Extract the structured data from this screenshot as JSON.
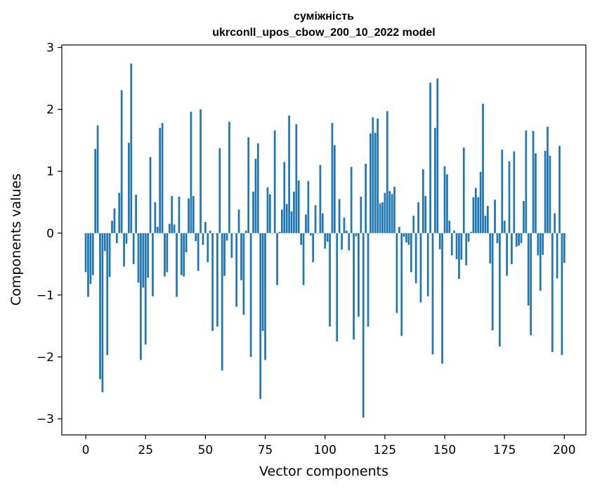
{
  "chart_data": {
    "type": "bar",
    "title_line1": "суміжність",
    "title_line2": "ukrconll_upos_cbow_200_10_2022 model",
    "xlabel": "Vector components",
    "ylabel": "Components values",
    "xlim": [
      -10,
      209
    ],
    "ylim": [
      -3.26,
      3.04
    ],
    "xticks": [
      0,
      25,
      50,
      75,
      100,
      125,
      150,
      175,
      200
    ],
    "yticks": [
      -3,
      -2,
      -1,
      0,
      1,
      2,
      3
    ],
    "grid": false,
    "bar_color": "#1f77b4",
    "values": [
      -0.63,
      -1.03,
      -0.82,
      -0.68,
      1.36,
      1.74,
      -2.36,
      -2.57,
      -0.29,
      -1.97,
      -0.71,
      0.2,
      0.4,
      -0.16,
      0.65,
      2.31,
      -0.54,
      -0.17,
      1.46,
      2.74,
      -0.5,
      0.62,
      -0.8,
      -2.05,
      -0.88,
      -1.8,
      -0.72,
      1.23,
      -1.02,
      0.5,
      0.1,
      1.7,
      1.78,
      -0.7,
      -0.63,
      0.15,
      0.6,
      0.14,
      -1.03,
      0.59,
      -0.68,
      -0.7,
      -0.31,
      0.56,
      1.96,
      0.6,
      -0.13,
      -0.61,
      2.0,
      -0.19,
      0.18,
      -0.47,
      0.04,
      -1.58,
      0.0,
      -1.51,
      1.37,
      -2.22,
      -0.69,
      -0.12,
      1.8,
      -0.4,
      0.0,
      -1.19,
      0.38,
      -0.76,
      -1.32,
      0.04,
      1.55,
      -2.0,
      0.67,
      1.2,
      1.45,
      -2.68,
      -1.58,
      -2.05,
      0.74,
      0.63,
      0.0,
      1.66,
      -0.84,
      0.02,
      0.38,
      1.15,
      0.47,
      1.9,
      0.35,
      0.67,
      1.76,
      0.85,
      -0.19,
      -0.84,
      0.3,
      0.84,
      -0.04,
      -0.47,
      0.45,
      0.0,
      1.1,
      0.32,
      -0.25,
      -0.14,
      -1.51,
      1.78,
      1.42,
      -1.75,
      0.55,
      -0.27,
      0.25,
      0.04,
      -0.28,
      1.07,
      -1.72,
      -0.05,
      -1.35,
      0.59,
      -2.98,
      1.12,
      -1.51,
      1.61,
      1.87,
      1.62,
      1.85,
      0.48,
      0.5,
      0.65,
      1.97,
      0.68,
      0.63,
      0.75,
      -1.29,
      0.1,
      -1.66,
      -0.06,
      -0.15,
      -0.19,
      -0.63,
      0.28,
      -0.81,
      0.5,
      -1.12,
      1.03,
      0.6,
      -1.02,
      2.43,
      -1.96,
      1.7,
      2.5,
      -0.26,
      -2.11,
      1.08,
      0.95,
      0.2,
      -0.36,
      0.04,
      -0.42,
      -0.74,
      -0.43,
      1.38,
      -0.52,
      -0.14,
      0.02,
      0.58,
      0.73,
      0.58,
      0.99,
      2.09,
      0.28,
      0.44,
      -0.49,
      -1.57,
      0.54,
      -0.16,
      -1.83,
      1.35,
      0.2,
      -0.69,
      1.16,
      -0.5,
      1.32,
      -0.22,
      -0.2,
      -0.16,
      0.52,
      1.66,
      -1.17,
      -1.65,
      1.65,
      1.29,
      -0.36,
      -0.93,
      -0.35,
      1.33,
      1.72,
      1.25,
      -1.92,
      0.32,
      -0.73,
      1.41,
      -1.97,
      -0.48
    ]
  }
}
